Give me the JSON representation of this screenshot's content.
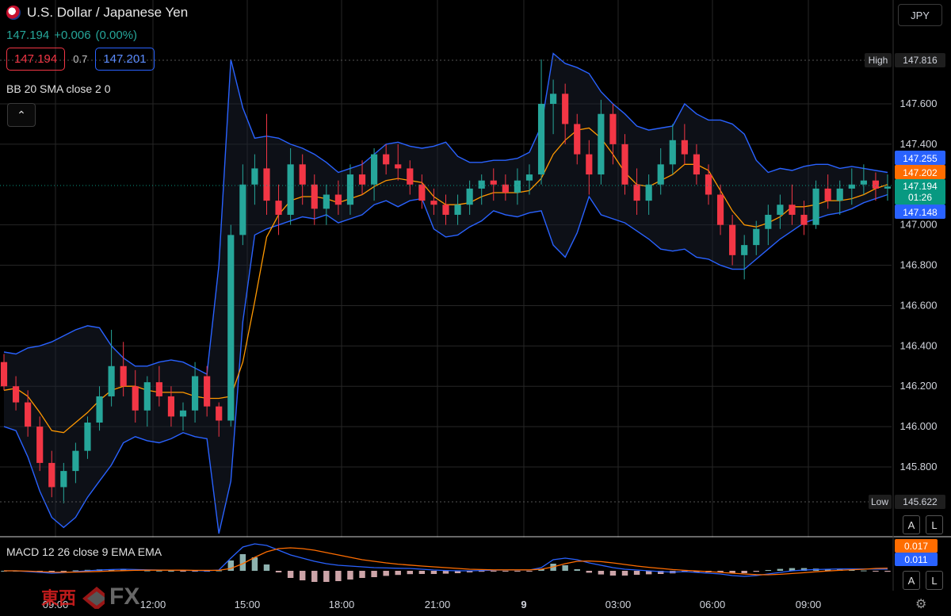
{
  "header": {
    "title": "U.S. Dollar / Japanese Yen",
    "price": "147.194",
    "change": "+0.006",
    "change_pct": "(0.00%)",
    "sell_price": "147.194",
    "spread": "0.7",
    "buy_price": "147.201",
    "currency": "JPY"
  },
  "indicators": {
    "bb_label": "BB 20 SMA close 2 0",
    "macd_label": "MACD 12 26 close 9 EMA EMA"
  },
  "buttons": {
    "auto": "A",
    "log": "L"
  },
  "price_tags": {
    "high_label": "High",
    "high_value": "147.816",
    "low_label": "Low",
    "low_value": "145.622",
    "bb_upper": "147.255",
    "bb_basis": "147.202",
    "last": "147.194",
    "countdown": "01:26",
    "bb_lower": "147.148",
    "macd_signal": "0.017",
    "macd_line": "0.011"
  },
  "watermark": {
    "kanji": "東西",
    "fx": "FX"
  },
  "colors": {
    "up": "#26a69a",
    "down": "#f23645",
    "bb_band": "#2962ff",
    "bb_basis": "#ff9800",
    "last_price": "#089981",
    "macd_signal": "#ff6d00",
    "macd_line": "#2962ff"
  },
  "chart_data": {
    "type": "candlestick",
    "title": "U.S. Dollar / Japanese Yen",
    "y_ticks": [
      147.6,
      147.4,
      147.0,
      146.8,
      146.6,
      146.4,
      146.2,
      146.0,
      145.8
    ],
    "x_ticks": [
      "09:00",
      "12:00",
      "15:00",
      "18:00",
      "21:00",
      "9",
      "03:00",
      "06:00",
      "09:00"
    ],
    "ylim": [
      145.45,
      148.0
    ],
    "grid": true,
    "legend": "top-left",
    "series": [
      {
        "name": "BB 20 SMA close 2 0 upper",
        "values": [
          146.37,
          146.36,
          146.39,
          146.4,
          146.42,
          146.45,
          146.48,
          146.5,
          146.49,
          146.4,
          146.34,
          146.3,
          146.3,
          146.32,
          146.33,
          146.32,
          146.29,
          146.26,
          146.8,
          147.82,
          147.58,
          147.43,
          147.44,
          147.43,
          147.4,
          147.38,
          147.35,
          147.31,
          147.26,
          147.28,
          147.3,
          147.35,
          147.4,
          147.41,
          147.39,
          147.38,
          147.39,
          147.41,
          147.34,
          147.31,
          147.31,
          147.32,
          147.32,
          147.33,
          147.36,
          147.49,
          147.85,
          147.8,
          147.78,
          147.75,
          147.66,
          147.6,
          147.55,
          147.49,
          147.47,
          147.48,
          147.49,
          147.6,
          147.55,
          147.52,
          147.52,
          147.5,
          147.45,
          147.32,
          147.26,
          147.28,
          147.27,
          147.29,
          147.3,
          147.3,
          147.28,
          147.29,
          147.28,
          147.27,
          147.26
        ]
      },
      {
        "name": "BB 20 SMA close 2 0 basis",
        "values": [
          146.18,
          146.19,
          146.15,
          146.07,
          145.98,
          145.97,
          146.02,
          146.07,
          146.13,
          146.18,
          146.2,
          146.2,
          146.18,
          146.17,
          146.17,
          146.17,
          146.15,
          146.14,
          146.14,
          146.15,
          146.32,
          146.62,
          146.94,
          147.05,
          147.12,
          147.14,
          147.14,
          147.13,
          147.11,
          147.13,
          147.15,
          147.19,
          147.22,
          147.23,
          147.22,
          147.21,
          147.14,
          147.1,
          147.1,
          147.11,
          147.14,
          147.16,
          147.16,
          147.16,
          147.17,
          147.23,
          147.35,
          147.42,
          147.47,
          147.48,
          147.43,
          147.35,
          147.26,
          147.2,
          147.19,
          147.22,
          147.25,
          147.3,
          147.3,
          147.27,
          147.17,
          147.07,
          147.0,
          146.99,
          147.01,
          147.04,
          147.09,
          147.09,
          147.1,
          147.12,
          147.12,
          147.13,
          147.15,
          147.18,
          147.2
        ]
      },
      {
        "name": "BB 20 SMA close 2 0 lower",
        "values": [
          146.0,
          145.98,
          145.85,
          145.68,
          145.55,
          145.5,
          145.55,
          145.65,
          145.73,
          145.81,
          145.92,
          145.95,
          145.93,
          145.92,
          145.94,
          145.97,
          145.95,
          145.94,
          145.47,
          145.73,
          146.52,
          146.95,
          146.98,
          147.0,
          147.02,
          147.04,
          147.03,
          147.05,
          147.01,
          147.03,
          147.05,
          147.1,
          147.12,
          147.09,
          147.12,
          147.13,
          146.98,
          146.94,
          146.95,
          146.99,
          147.02,
          147.07,
          147.05,
          147.04,
          147.06,
          147.07,
          146.9,
          146.84,
          146.96,
          147.14,
          147.05,
          147.03,
          147.01,
          146.97,
          146.93,
          146.88,
          146.87,
          146.88,
          146.84,
          146.83,
          146.8,
          146.78,
          146.78,
          146.83,
          146.88,
          146.93,
          146.97,
          147.01,
          147.03,
          147.05,
          147.06,
          147.08,
          147.11,
          147.13,
          147.15
        ]
      },
      {
        "name": "MACD 12 26 close 9 EMA EMA macd",
        "values": [
          0.0,
          0.0,
          -0.005,
          -0.01,
          -0.015,
          -0.012,
          -0.005,
          0.0,
          0.005,
          0.008,
          0.01,
          0.008,
          0.006,
          0.005,
          0.004,
          0.003,
          0.002,
          0.0,
          0.005,
          0.08,
          0.15,
          0.17,
          0.16,
          0.13,
          0.1,
          0.08,
          0.06,
          0.045,
          0.035,
          0.03,
          0.025,
          0.02,
          0.018,
          0.016,
          0.015,
          0.01,
          0.005,
          0.002,
          0.0,
          0.0,
          0.002,
          0.004,
          0.005,
          0.005,
          0.005,
          0.02,
          0.07,
          0.08,
          0.07,
          0.05,
          0.035,
          0.02,
          0.01,
          0.005,
          0.0,
          -0.005,
          -0.008,
          -0.005,
          -0.01,
          -0.015,
          -0.02,
          -0.03,
          -0.035,
          -0.03,
          -0.02,
          -0.01,
          0.0,
          0.005,
          0.008,
          0.01,
          0.012,
          0.012,
          0.012,
          0.011,
          0.011
        ]
      },
      {
        "name": "MACD 12 26 close 9 EMA EMA signal",
        "values": [
          0.0,
          0.0,
          -0.002,
          -0.005,
          -0.008,
          -0.009,
          -0.008,
          -0.006,
          -0.004,
          -0.001,
          0.001,
          0.003,
          0.004,
          0.004,
          0.004,
          0.004,
          0.003,
          0.003,
          0.003,
          0.015,
          0.045,
          0.085,
          0.12,
          0.14,
          0.145,
          0.14,
          0.13,
          0.115,
          0.1,
          0.085,
          0.07,
          0.06,
          0.05,
          0.042,
          0.036,
          0.03,
          0.025,
          0.02,
          0.015,
          0.01,
          0.008,
          0.006,
          0.006,
          0.006,
          0.006,
          0.01,
          0.025,
          0.045,
          0.06,
          0.062,
          0.058,
          0.05,
          0.04,
          0.03,
          0.022,
          0.015,
          0.008,
          0.003,
          -0.001,
          -0.005,
          -0.01,
          -0.015,
          -0.02,
          -0.024,
          -0.025,
          -0.022,
          -0.017,
          -0.012,
          -0.006,
          -0.001,
          0.003,
          0.007,
          0.01,
          0.015,
          0.017
        ]
      }
    ],
    "candles": [
      [
        146.32,
        146.36,
        146.18,
        146.2
      ],
      [
        146.2,
        146.25,
        146.08,
        146.12
      ],
      [
        146.12,
        146.18,
        145.95,
        146.0
      ],
      [
        146.0,
        146.05,
        145.78,
        145.82
      ],
      [
        145.82,
        145.88,
        145.65,
        145.7
      ],
      [
        145.7,
        145.82,
        145.62,
        145.78
      ],
      [
        145.78,
        145.92,
        145.72,
        145.88
      ],
      [
        145.88,
        146.05,
        145.84,
        146.02
      ],
      [
        146.02,
        146.2,
        145.98,
        146.15
      ],
      [
        146.15,
        146.48,
        146.1,
        146.3
      ],
      [
        146.3,
        146.42,
        146.15,
        146.2
      ],
      [
        146.2,
        146.28,
        146.02,
        146.08
      ],
      [
        146.08,
        146.25,
        146.0,
        146.22
      ],
      [
        146.22,
        146.3,
        146.1,
        146.15
      ],
      [
        146.15,
        146.2,
        146.0,
        146.05
      ],
      [
        146.05,
        146.12,
        145.98,
        146.08
      ],
      [
        146.08,
        146.32,
        146.02,
        146.25
      ],
      [
        146.25,
        146.3,
        146.05,
        146.1
      ],
      [
        146.1,
        146.12,
        145.95,
        146.03
      ],
      [
        146.03,
        147.0,
        146.0,
        146.95
      ],
      [
        146.95,
        147.3,
        146.9,
        147.2
      ],
      [
        147.2,
        147.35,
        147.1,
        147.28
      ],
      [
        147.28,
        147.55,
        147.05,
        147.12
      ],
      [
        147.12,
        147.2,
        146.95,
        147.05
      ],
      [
        147.05,
        147.38,
        147.0,
        147.3
      ],
      [
        147.3,
        147.35,
        147.1,
        147.2
      ],
      [
        147.2,
        147.25,
        147.0,
        147.08
      ],
      [
        147.08,
        147.2,
        147.0,
        147.15
      ],
      [
        147.15,
        147.22,
        147.05,
        147.1
      ],
      [
        147.1,
        147.3,
        147.05,
        147.25
      ],
      [
        147.25,
        147.32,
        147.15,
        147.2
      ],
      [
        147.2,
        147.38,
        147.12,
        147.35
      ],
      [
        147.35,
        147.4,
        147.25,
        147.3
      ],
      [
        147.3,
        147.4,
        147.22,
        147.28
      ],
      [
        147.28,
        147.32,
        147.15,
        147.2
      ],
      [
        147.2,
        147.25,
        147.08,
        147.12
      ],
      [
        147.12,
        147.18,
        147.05,
        147.1
      ],
      [
        147.1,
        147.15,
        147.0,
        147.05
      ],
      [
        147.05,
        147.15,
        147.0,
        147.1
      ],
      [
        147.1,
        147.22,
        147.05,
        147.18
      ],
      [
        147.18,
        147.25,
        147.1,
        147.22
      ],
      [
        147.22,
        147.28,
        147.12,
        147.2
      ],
      [
        147.2,
        147.25,
        147.12,
        147.16
      ],
      [
        147.16,
        147.28,
        147.1,
        147.22
      ],
      [
        147.22,
        147.3,
        147.15,
        147.25
      ],
      [
        147.25,
        147.82,
        147.2,
        147.6
      ],
      [
        147.6,
        147.72,
        147.45,
        147.65
      ],
      [
        147.65,
        147.7,
        147.4,
        147.5
      ],
      [
        147.5,
        147.55,
        147.3,
        147.35
      ],
      [
        147.35,
        147.42,
        147.15,
        147.25
      ],
      [
        147.25,
        147.62,
        147.2,
        147.55
      ],
      [
        147.55,
        147.6,
        147.3,
        147.4
      ],
      [
        147.4,
        147.45,
        147.15,
        147.2
      ],
      [
        147.2,
        147.28,
        147.05,
        147.12
      ],
      [
        147.12,
        147.25,
        147.05,
        147.2
      ],
      [
        147.2,
        147.38,
        147.15,
        147.3
      ],
      [
        147.3,
        147.5,
        147.25,
        147.42
      ],
      [
        147.42,
        147.5,
        147.3,
        147.35
      ],
      [
        147.35,
        147.4,
        147.2,
        147.25
      ],
      [
        147.25,
        147.3,
        147.1,
        147.15
      ],
      [
        147.15,
        147.2,
        146.95,
        147.0
      ],
      [
        147.0,
        147.05,
        146.8,
        146.85
      ],
      [
        146.85,
        146.95,
        146.73,
        146.9
      ],
      [
        146.9,
        147.02,
        146.85,
        146.98
      ],
      [
        146.98,
        147.1,
        146.9,
        147.05
      ],
      [
        147.05,
        147.15,
        146.98,
        147.1
      ],
      [
        147.1,
        147.2,
        147.0,
        147.05
      ],
      [
        147.05,
        147.12,
        146.95,
        147.0
      ],
      [
        147.0,
        147.22,
        146.98,
        147.18
      ],
      [
        147.18,
        147.25,
        147.08,
        147.12
      ],
      [
        147.12,
        147.22,
        147.05,
        147.18
      ],
      [
        147.18,
        147.28,
        147.1,
        147.2
      ],
      [
        147.2,
        147.3,
        147.15,
        147.22
      ],
      [
        147.22,
        147.26,
        147.12,
        147.18
      ],
      [
        147.18,
        147.25,
        147.12,
        147.19
      ]
    ],
    "macd_histogram": [
      0.0,
      0.0,
      -0.003,
      -0.005,
      -0.007,
      -0.003,
      0.003,
      0.006,
      0.009,
      0.009,
      0.009,
      0.005,
      0.002,
      0.001,
      0.0,
      -0.001,
      -0.001,
      -0.003,
      0.002,
      0.065,
      0.105,
      0.085,
      0.04,
      -0.01,
      -0.045,
      -0.06,
      -0.07,
      -0.07,
      -0.065,
      -0.055,
      -0.045,
      -0.04,
      -0.032,
      -0.026,
      -0.021,
      -0.02,
      -0.02,
      -0.018,
      -0.015,
      -0.01,
      -0.006,
      -0.002,
      -0.001,
      -0.001,
      -0.001,
      0.01,
      0.045,
      0.035,
      0.01,
      -0.012,
      -0.023,
      -0.03,
      -0.03,
      -0.025,
      -0.022,
      -0.02,
      -0.016,
      -0.008,
      -0.009,
      -0.01,
      -0.01,
      -0.015,
      -0.015,
      -0.006,
      0.005,
      0.012,
      0.017,
      0.017,
      0.014,
      0.011,
      0.009,
      0.005,
      0.002,
      -0.004,
      -0.006
    ]
  }
}
